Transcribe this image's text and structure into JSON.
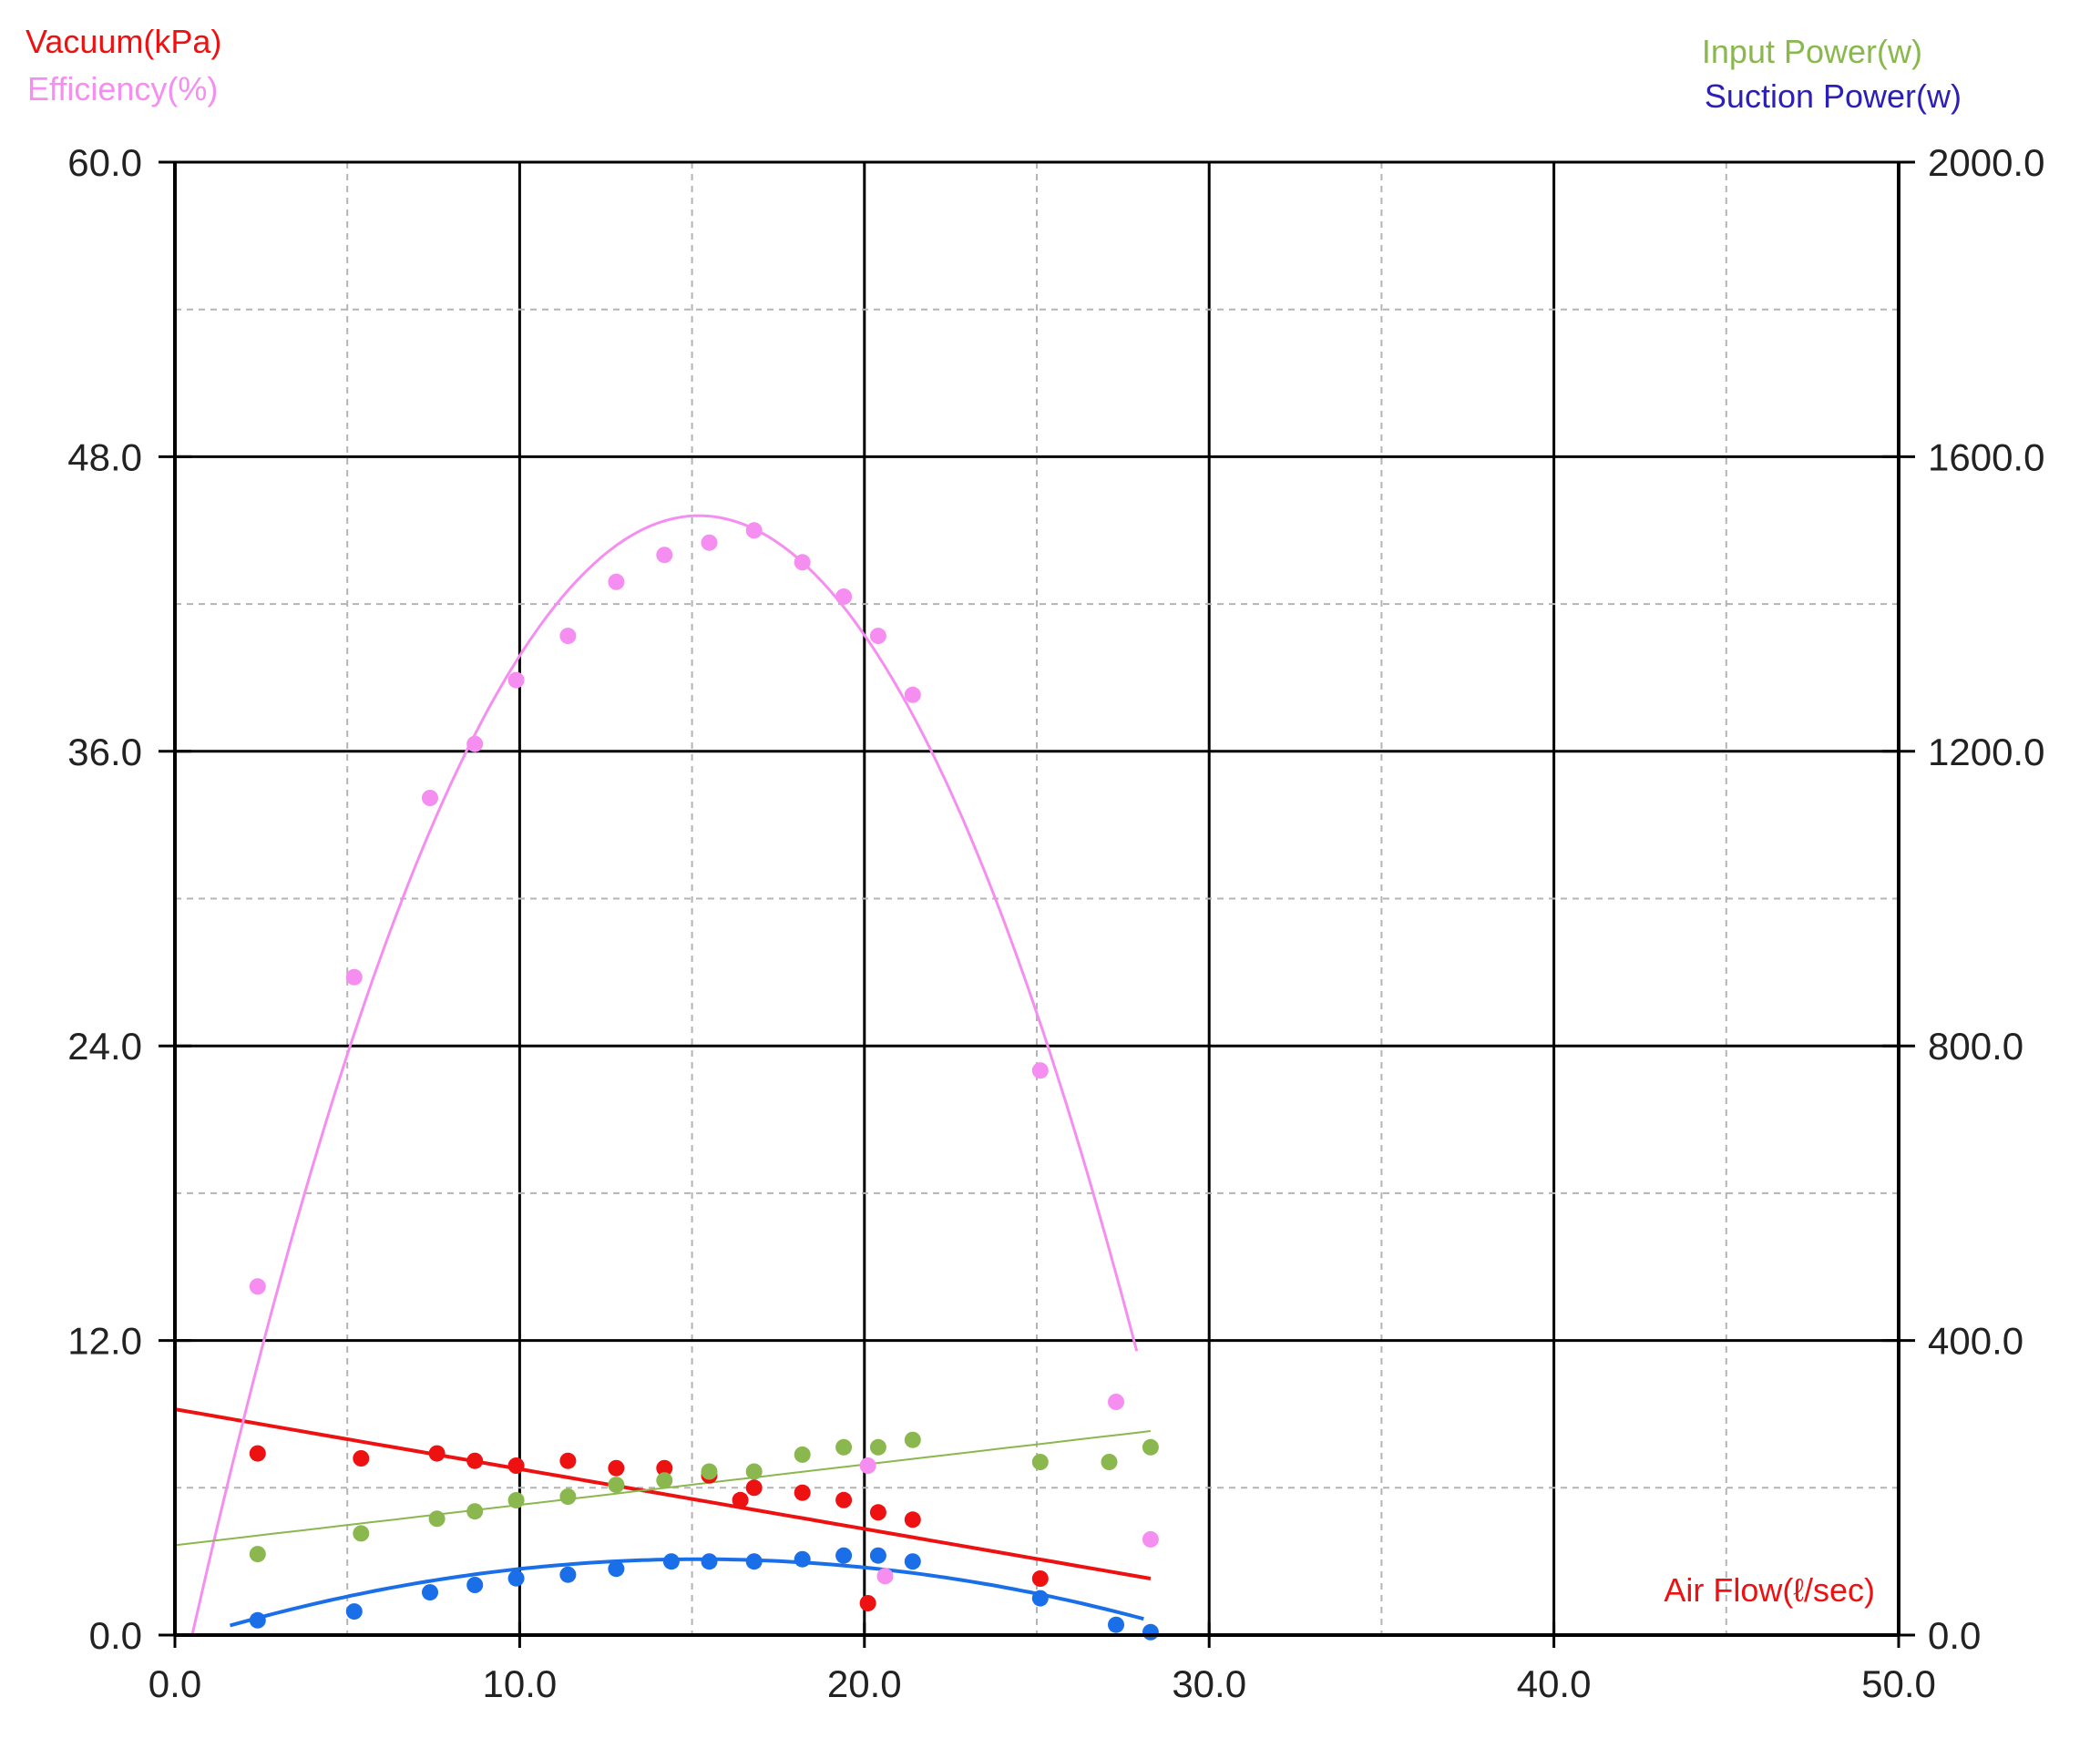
{
  "chart_data": {
    "type": "scatter",
    "title": "",
    "xlabel": "Air Flow(ℓ/sec)",
    "ylabel_left": [
      "Vacuum(kPa)",
      "Efficiency(%)"
    ],
    "ylabel_right": [
      "Input Power(w)",
      "Suction Power(w)"
    ],
    "xlim": [
      0,
      50
    ],
    "ylim_left": [
      0,
      60
    ],
    "ylim_right": [
      0,
      2000
    ],
    "x_ticks": [
      "0.0",
      "10.0",
      "20.0",
      "30.0",
      "40.0",
      "50.0"
    ],
    "y_left_ticks": [
      "0.0",
      "12.0",
      "24.0",
      "36.0",
      "48.0",
      "60.0"
    ],
    "y_right_ticks": [
      "0.0",
      "400.0",
      "800.0",
      "1200.0",
      "1600.0",
      "2000.0"
    ],
    "grid": true,
    "colors": {
      "vacuum": "#ee1111",
      "efficiency": "#f58ef0",
      "input_power": "#8ab84e",
      "suction_power": "#1a6fe8",
      "label_suction": "#2b1fb8",
      "axis": "#000000",
      "minor_grid": "#b4b4b4"
    },
    "series": [
      {
        "name": "Vacuum(kPa)",
        "key": "vacuum",
        "axis": "left",
        "points": [
          [
            2.4,
            7.4
          ],
          [
            5.4,
            7.2
          ],
          [
            7.6,
            7.4
          ],
          [
            8.7,
            7.1
          ],
          [
            9.9,
            6.9
          ],
          [
            11.4,
            7.1
          ],
          [
            12.8,
            6.8
          ],
          [
            14.2,
            6.8
          ],
          [
            15.5,
            6.5
          ],
          [
            16.4,
            5.5
          ],
          [
            16.8,
            6.0
          ],
          [
            18.2,
            5.8
          ],
          [
            19.4,
            5.5
          ],
          [
            20.1,
            1.3
          ],
          [
            20.4,
            5.0
          ],
          [
            21.4,
            4.7
          ],
          [
            25.1,
            2.3
          ]
        ],
        "fit": [
          [
            0,
            9.2
          ],
          [
            28.3,
            2.3
          ]
        ]
      },
      {
        "name": "Efficiency(%)",
        "key": "efficiency",
        "axis": "left",
        "points": [
          [
            2.4,
            14.2
          ],
          [
            5.2,
            26.8
          ],
          [
            7.4,
            34.1
          ],
          [
            8.7,
            36.3
          ],
          [
            9.9,
            38.9
          ],
          [
            11.4,
            40.7
          ],
          [
            12.8,
            42.9
          ],
          [
            14.2,
            44.0
          ],
          [
            15.5,
            44.5
          ],
          [
            16.8,
            45.0
          ],
          [
            18.2,
            43.7
          ],
          [
            19.4,
            42.3
          ],
          [
            20.1,
            6.9
          ],
          [
            20.4,
            40.7
          ],
          [
            20.6,
            2.4
          ],
          [
            21.4,
            38.3
          ],
          [
            25.1,
            23.0
          ],
          [
            27.3,
            9.5
          ],
          [
            28.3,
            3.9
          ]
        ],
        "fit": {
          "vertex": [
            15.2,
            45.6
          ],
          "range": [
            0.5,
            27.9
          ]
        }
      },
      {
        "name": "Input Power(w)",
        "key": "input_power",
        "axis": "right",
        "points": [
          [
            2.4,
            110
          ],
          [
            5.4,
            138
          ],
          [
            7.6,
            158
          ],
          [
            8.7,
            168
          ],
          [
            9.9,
            183
          ],
          [
            11.4,
            188
          ],
          [
            12.8,
            204
          ],
          [
            14.2,
            210
          ],
          [
            15.5,
            222
          ],
          [
            16.8,
            222
          ],
          [
            18.2,
            245
          ],
          [
            19.4,
            255
          ],
          [
            20.4,
            255
          ],
          [
            21.4,
            265
          ],
          [
            25.1,
            235
          ],
          [
            27.1,
            235
          ],
          [
            28.3,
            255
          ]
        ],
        "fit": [
          [
            0,
            122
          ],
          [
            28.3,
            277
          ]
        ]
      },
      {
        "name": "Suction Power(w)",
        "key": "suction_power",
        "axis": "right",
        "points": [
          [
            2.4,
            20
          ],
          [
            5.2,
            32
          ],
          [
            7.4,
            58
          ],
          [
            8.7,
            68
          ],
          [
            9.9,
            77
          ],
          [
            11.4,
            82
          ],
          [
            12.8,
            90
          ],
          [
            14.4,
            100
          ],
          [
            15.5,
            100
          ],
          [
            16.8,
            100
          ],
          [
            18.2,
            103
          ],
          [
            19.4,
            108
          ],
          [
            20.4,
            108
          ],
          [
            21.4,
            100
          ],
          [
            25.1,
            50
          ],
          [
            27.3,
            14
          ],
          [
            28.3,
            4
          ]
        ],
        "fit": {
          "vertex": [
            15.2,
            103
          ],
          "range": [
            1.6,
            28.1
          ],
          "end_value": 22
        }
      }
    ]
  }
}
